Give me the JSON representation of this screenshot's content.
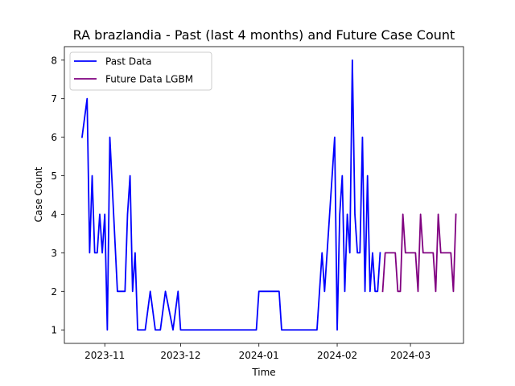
{
  "chart_data": {
    "type": "line",
    "title": "RA brazlandia - Past (last 4 months) and Future Case Count",
    "xlabel": "Time",
    "ylabel": "Case Count",
    "x_type": "date",
    "xlim": [
      "2023-10-16",
      "2024-03-22"
    ],
    "ylim": [
      0.65,
      8.35
    ],
    "x_ticks": [
      {
        "value": "2023-11-01",
        "label": "2023-11"
      },
      {
        "value": "2023-12-01",
        "label": "2023-12"
      },
      {
        "value": "2024-01-01",
        "label": "2024-01"
      },
      {
        "value": "2024-02-01",
        "label": "2024-02"
      },
      {
        "value": "2024-03-01",
        "label": "2024-03"
      }
    ],
    "y_ticks": [
      1,
      2,
      3,
      4,
      5,
      6,
      7,
      8
    ],
    "grid": false,
    "legend": {
      "position": "top-left"
    },
    "series": [
      {
        "name": "Past Data",
        "color": "#0000ff",
        "points": [
          [
            "2023-10-23",
            6
          ],
          [
            "2023-10-25",
            7
          ],
          [
            "2023-10-26",
            3
          ],
          [
            "2023-10-27",
            5
          ],
          [
            "2023-10-28",
            3
          ],
          [
            "2023-10-29",
            3
          ],
          [
            "2023-10-30",
            4
          ],
          [
            "2023-10-31",
            3
          ],
          [
            "2023-11-01",
            4
          ],
          [
            "2023-11-02",
            1
          ],
          [
            "2023-11-03",
            6
          ],
          [
            "2023-11-06",
            2
          ],
          [
            "2023-11-07",
            2
          ],
          [
            "2023-11-09",
            2
          ],
          [
            "2023-11-10",
            4
          ],
          [
            "2023-11-11",
            5
          ],
          [
            "2023-11-12",
            2
          ],
          [
            "2023-11-13",
            3
          ],
          [
            "2023-11-14",
            1
          ],
          [
            "2023-11-17",
            1
          ],
          [
            "2023-11-19",
            2
          ],
          [
            "2023-11-21",
            1
          ],
          [
            "2023-11-23",
            1
          ],
          [
            "2023-11-25",
            2
          ],
          [
            "2023-11-28",
            1
          ],
          [
            "2023-11-30",
            2
          ],
          [
            "2023-12-01",
            1
          ],
          [
            "2023-12-31",
            1
          ],
          [
            "2024-01-01",
            2
          ],
          [
            "2024-01-09",
            2
          ],
          [
            "2024-01-10",
            1
          ],
          [
            "2024-01-24",
            1
          ],
          [
            "2024-01-26",
            3
          ],
          [
            "2024-01-27",
            2
          ],
          [
            "2024-01-31",
            6
          ],
          [
            "2024-02-01",
            1
          ],
          [
            "2024-02-02",
            4
          ],
          [
            "2024-02-03",
            5
          ],
          [
            "2024-02-04",
            2
          ],
          [
            "2024-02-05",
            4
          ],
          [
            "2024-02-06",
            3
          ],
          [
            "2024-02-07",
            8
          ],
          [
            "2024-02-08",
            4
          ],
          [
            "2024-02-09",
            3
          ],
          [
            "2024-02-10",
            3
          ],
          [
            "2024-02-11",
            6
          ],
          [
            "2024-02-12",
            2
          ],
          [
            "2024-02-13",
            5
          ],
          [
            "2024-02-14",
            2
          ],
          [
            "2024-02-15",
            3
          ],
          [
            "2024-02-16",
            2
          ],
          [
            "2024-02-17",
            2
          ],
          [
            "2024-02-18",
            3
          ]
        ]
      },
      {
        "name": "Future Data LGBM",
        "color": "#800080",
        "points": [
          [
            "2024-02-19",
            2
          ],
          [
            "2024-02-20",
            3
          ],
          [
            "2024-02-24",
            3
          ],
          [
            "2024-02-25",
            2
          ],
          [
            "2024-02-26",
            2
          ],
          [
            "2024-02-27",
            4
          ],
          [
            "2024-02-28",
            3
          ],
          [
            "2024-03-03",
            3
          ],
          [
            "2024-03-04",
            2
          ],
          [
            "2024-03-05",
            4
          ],
          [
            "2024-03-06",
            3
          ],
          [
            "2024-03-10",
            3
          ],
          [
            "2024-03-11",
            2
          ],
          [
            "2024-03-12",
            4
          ],
          [
            "2024-03-13",
            3
          ],
          [
            "2024-03-17",
            3
          ],
          [
            "2024-03-18",
            2
          ],
          [
            "2024-03-19",
            4
          ]
        ]
      }
    ]
  }
}
